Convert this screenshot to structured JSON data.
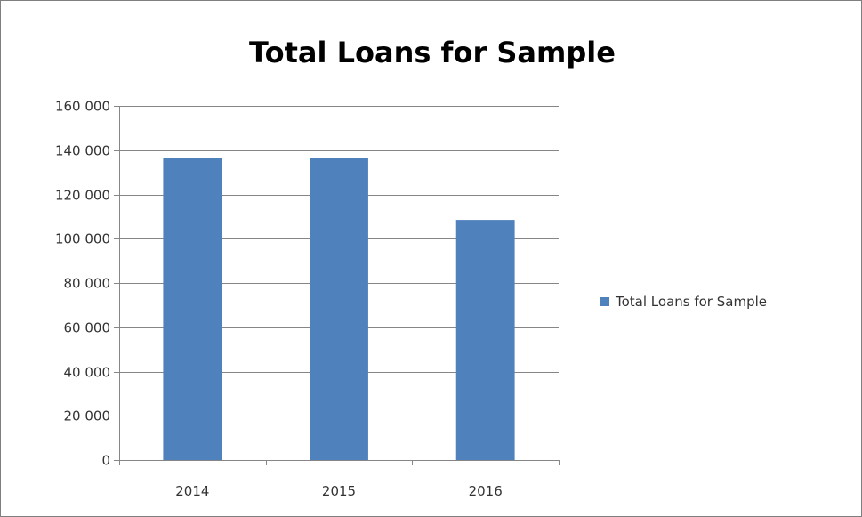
{
  "chart_data": {
    "type": "bar",
    "title": "Total Loans for Sample",
    "xlabel": "",
    "ylabel": "",
    "categories": [
      "2014",
      "2015",
      "2016"
    ],
    "series": [
      {
        "name": "Total Loans for Sample",
        "values": [
          136500,
          136500,
          108500
        ],
        "color": "#4f81bd"
      }
    ],
    "ylim": [
      0,
      160000
    ],
    "yticks": [
      0,
      20000,
      40000,
      60000,
      80000,
      100000,
      120000,
      140000,
      160000
    ],
    "ytick_labels": [
      "0",
      "20 000",
      "40 000",
      "60 000",
      "80 000",
      "100 000",
      "120 000",
      "140 000",
      "160 000"
    ],
    "grid": true,
    "legend_position": "right"
  }
}
